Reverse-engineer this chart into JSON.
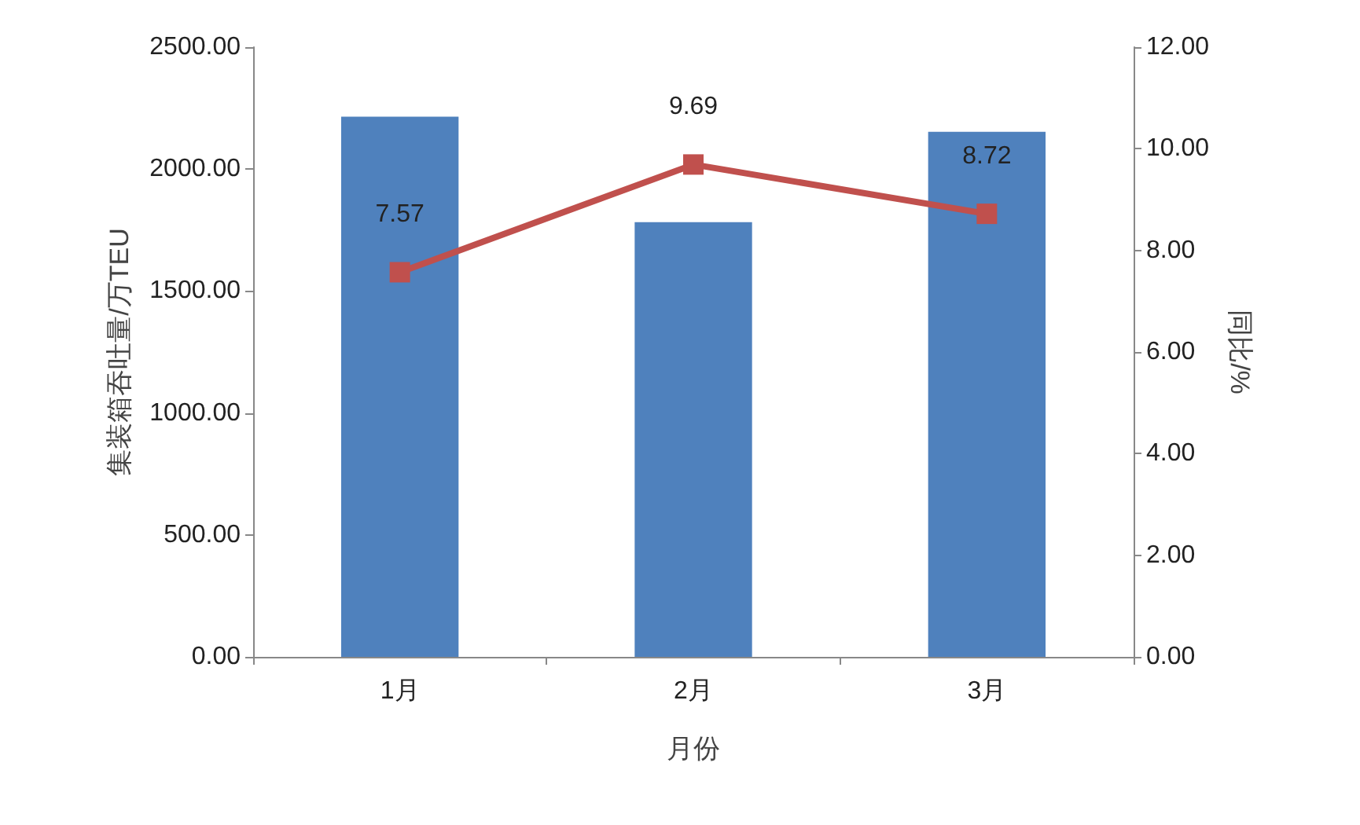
{
  "chart_data": {
    "type": "bar",
    "xlabel": "月份",
    "ylabel": "集装箱吞吐量/万TEU",
    "y2label": "同比/%",
    "categories": [
      "1月",
      "2月",
      "3月"
    ],
    "series": [
      {
        "color": "#4f81bd",
        "values": [
          2215,
          1782,
          2153
        ]
      },
      {
        "type": "line",
        "axis": "y2",
        "color": "#c0504d",
        "values": [
          7.57,
          9.69,
          8.72
        ],
        "value_labels": [
          "7.57",
          "9.69",
          "8.72"
        ],
        "marker": "square",
        "line_style": "solid"
      }
    ],
    "ylim": [
      0,
      2500
    ],
    "yticks": [
      {
        "value": 0,
        "label": "0.00"
      },
      {
        "value": 500,
        "label": "500.00"
      },
      {
        "value": 1000,
        "label": "1000.00"
      },
      {
        "value": 1500,
        "label": "1500.00"
      },
      {
        "value": 2000,
        "label": "2000.00"
      },
      {
        "value": 2500,
        "label": "2500.00"
      }
    ],
    "y2lim": [
      0,
      12
    ],
    "y2ticks": [
      {
        "value": 0,
        "label": "0.00"
      },
      {
        "value": 2,
        "label": "2.00"
      },
      {
        "value": 4,
        "label": "4.00"
      },
      {
        "value": 6,
        "label": "6.00"
      },
      {
        "value": 8,
        "label": "8.00"
      },
      {
        "value": 10,
        "label": "10.00"
      },
      {
        "value": 12,
        "label": "12.00"
      }
    ],
    "grid": false
  }
}
